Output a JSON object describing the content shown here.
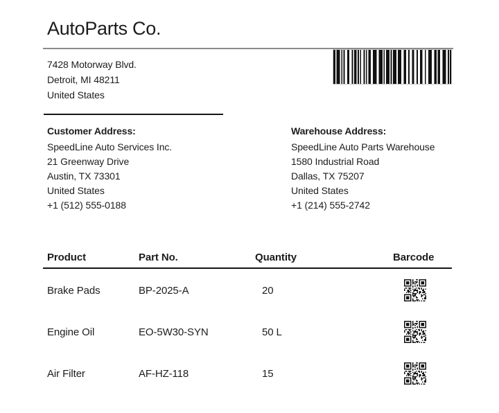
{
  "label": {
    "company": {
      "name": "AutoParts Co.",
      "address_lines": [
        "7428 Motorway Blvd.",
        "Detroit, MI 48211",
        "United States"
      ]
    },
    "shipment_barcode": {
      "icon": "barcode-icon",
      "type": "code128-style"
    },
    "customer": {
      "heading": "Customer Address:",
      "lines": [
        "SpeedLine Auto Services Inc.",
        "21 Greenway Drive",
        "Austin, TX 73301",
        "United States",
        "+1 (512) 555-0188"
      ]
    },
    "warehouse": {
      "heading": "Warehouse Address:",
      "lines": [
        "SpeedLine Auto Parts Warehouse",
        "1580 Industrial Road",
        "Dallas, TX 75207",
        "United States",
        "+1 (214) 555-2742"
      ]
    },
    "table": {
      "headers": [
        "Product",
        "Part No.",
        "Quantity",
        "Barcode"
      ],
      "rows": [
        {
          "product": "Brake Pads",
          "part_no": "BP-2025-A",
          "quantity": "20",
          "barcode_icon": "qr-code-icon"
        },
        {
          "product": "Engine Oil",
          "part_no": "EO-5W30-SYN",
          "quantity": "50 L",
          "barcode_icon": "qr-code-icon"
        },
        {
          "product": "Air Filter",
          "part_no": "AF-HZ-118",
          "quantity": "15",
          "barcode_icon": "qr-code-icon"
        }
      ]
    }
  },
  "colors": {
    "text": "#1c1c1c",
    "rule_gray": "#8a8a8a",
    "rule_black": "#151515",
    "barcode_ink": "#111111",
    "background": "#ffffff"
  }
}
